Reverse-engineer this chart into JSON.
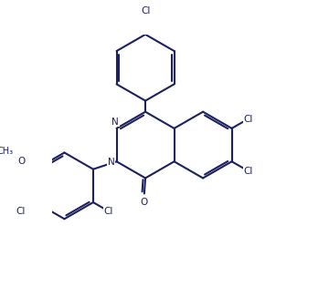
{
  "bg": "#ffffff",
  "lc": "#1c2060",
  "lw": 1.5,
  "fs": 7.5,
  "figsize": [
    3.6,
    3.15
  ],
  "dpi": 100,
  "xlim": [
    -1.0,
    9.5
  ],
  "ylim": [
    -0.5,
    9.5
  ]
}
